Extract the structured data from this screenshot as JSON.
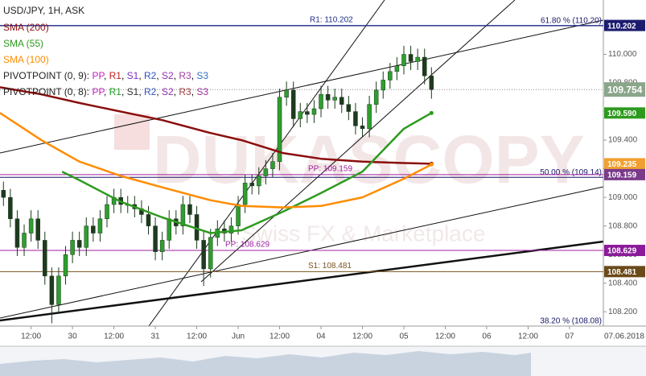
{
  "chart_data": {
    "type": "candlestick",
    "title": "USD/JPY, 1H, ASK",
    "xlim": [
      3,
      177.8
    ],
    "xticks": [
      {
        "value": 12,
        "label": "12:00"
      },
      {
        "value": 24,
        "label": "30"
      },
      {
        "value": 36,
        "label": "12:00"
      },
      {
        "value": 48,
        "label": "31"
      },
      {
        "value": 60,
        "label": "12:00"
      },
      {
        "value": 72,
        "label": "Jun"
      },
      {
        "value": 84,
        "label": "12:00"
      },
      {
        "value": 96,
        "label": "04"
      },
      {
        "value": 108,
        "label": "12:00"
      },
      {
        "value": 120,
        "label": "05"
      },
      {
        "value": 132,
        "label": "12:00"
      },
      {
        "value": 144,
        "label": "06"
      },
      {
        "value": 156,
        "label": "12:00"
      },
      {
        "value": 168,
        "label": "07"
      }
    ],
    "date_label": "07.06.2018",
    "ylim": [
      108.1,
      110.38
    ],
    "yticks": [
      {
        "value": 108.2,
        "label": "108.200"
      },
      {
        "value": 108.4,
        "label": "108.400"
      },
      {
        "value": 108.6,
        "label": "108.600"
      },
      {
        "value": 108.8,
        "label": "108.800"
      },
      {
        "value": 109.0,
        "label": "109.000"
      },
      {
        "value": 109.2,
        "label": "109.200"
      },
      {
        "value": 109.4,
        "label": "109.400"
      },
      {
        "value": 109.6,
        "label": "109.600"
      },
      {
        "value": 109.8,
        "label": "109.800"
      },
      {
        "value": 110.0,
        "label": "110.000"
      }
    ],
    "candles": {
      "up_color": "#2e9e2e",
      "down_color": "#1f3a1f",
      "x": [
        4,
        6,
        8,
        10,
        12,
        14,
        16,
        18,
        20,
        22,
        24,
        26,
        28,
        30,
        32,
        34,
        36,
        38,
        40,
        42,
        44,
        46,
        48,
        50,
        52,
        54,
        56,
        58,
        60,
        62,
        64,
        66,
        68,
        70,
        72,
        74,
        76,
        78,
        80,
        82,
        84,
        86,
        88,
        90,
        92,
        94,
        96,
        98,
        100,
        102,
        104,
        106,
        108,
        110,
        112,
        114,
        116,
        118,
        120,
        122,
        124,
        126,
        128
      ],
      "open": [
        109.05,
        109.0,
        108.85,
        108.65,
        108.75,
        108.85,
        108.7,
        108.45,
        108.25,
        108.45,
        108.6,
        108.7,
        108.65,
        108.8,
        108.75,
        108.85,
        108.95,
        109.0,
        108.95,
        108.95,
        108.92,
        108.88,
        108.8,
        108.62,
        108.7,
        108.85,
        108.8,
        108.95,
        108.88,
        108.7,
        108.5,
        108.72,
        108.78,
        108.75,
        108.8,
        108.95,
        109.1,
        109.08,
        109.15,
        109.2,
        109.25,
        109.7,
        109.75,
        109.55,
        109.6,
        109.58,
        109.62,
        109.72,
        109.68,
        109.7,
        109.65,
        109.6,
        109.5,
        109.48,
        109.65,
        109.75,
        109.82,
        109.88,
        109.92,
        110.0,
        109.95,
        109.98,
        109.85
      ],
      "high": [
        109.11,
        109.06,
        108.91,
        108.81,
        108.91,
        108.91,
        108.76,
        108.51,
        108.51,
        108.66,
        108.76,
        108.76,
        108.86,
        108.86,
        108.91,
        109.01,
        109.06,
        109.06,
        109.01,
        109.01,
        108.98,
        108.94,
        108.86,
        108.76,
        108.91,
        108.91,
        109.01,
        109.01,
        108.94,
        108.76,
        108.78,
        108.84,
        108.84,
        108.86,
        109.01,
        109.16,
        109.16,
        109.21,
        109.26,
        109.31,
        109.76,
        109.81,
        109.81,
        109.66,
        109.66,
        109.68,
        109.78,
        109.78,
        109.76,
        109.76,
        109.71,
        109.66,
        109.56,
        109.71,
        109.81,
        109.88,
        109.94,
        109.98,
        110.06,
        110.06,
        110.04,
        110.04,
        109.91
      ],
      "low": [
        108.94,
        108.79,
        108.59,
        108.59,
        108.69,
        108.64,
        108.39,
        108.12,
        108.19,
        108.39,
        108.54,
        108.59,
        108.59,
        108.69,
        108.69,
        108.79,
        108.89,
        108.89,
        108.89,
        108.86,
        108.82,
        108.74,
        108.56,
        108.56,
        108.64,
        108.74,
        108.74,
        108.82,
        108.64,
        108.38,
        108.44,
        108.66,
        108.69,
        108.69,
        108.74,
        108.89,
        109.02,
        109.02,
        109.09,
        109.14,
        109.19,
        109.64,
        109.49,
        109.49,
        109.52,
        109.52,
        109.56,
        109.62,
        109.62,
        109.59,
        109.54,
        109.44,
        109.42,
        109.42,
        109.59,
        109.69,
        109.76,
        109.82,
        109.86,
        109.89,
        109.89,
        109.79,
        109.69
      ],
      "close": [
        109.0,
        108.85,
        108.65,
        108.75,
        108.85,
        108.7,
        108.45,
        108.25,
        108.45,
        108.6,
        108.7,
        108.65,
        108.8,
        108.75,
        108.85,
        108.95,
        109.0,
        108.95,
        108.95,
        108.92,
        108.88,
        108.8,
        108.62,
        108.7,
        108.85,
        108.8,
        108.95,
        108.88,
        108.7,
        108.5,
        108.72,
        108.78,
        108.75,
        108.8,
        108.95,
        109.1,
        109.08,
        109.15,
        109.2,
        109.25,
        109.7,
        109.75,
        109.55,
        109.6,
        109.58,
        109.62,
        109.72,
        109.68,
        109.7,
        109.65,
        109.6,
        109.5,
        109.48,
        109.65,
        109.75,
        109.82,
        109.88,
        109.92,
        110.0,
        109.95,
        109.98,
        109.85,
        109.754
      ]
    },
    "series": [
      {
        "name": "SMA (200)",
        "color": "#8b0d0d",
        "x": [
          3,
          15,
          26,
          38,
          50,
          64,
          73,
          85,
          96,
          108,
          120,
          128
        ],
        "values": [
          109.77,
          109.72,
          109.66,
          109.6,
          109.54,
          109.45,
          109.4,
          109.31,
          109.27,
          109.25,
          109.24,
          109.235
        ]
      },
      {
        "name": "SMA (55)",
        "color": "#2d9a1e",
        "x": [
          21,
          26,
          38,
          50,
          64,
          73,
          85,
          96,
          108,
          120,
          128
        ],
        "values": [
          109.18,
          109.12,
          108.97,
          108.86,
          108.75,
          108.77,
          108.9,
          109.03,
          109.18,
          109.48,
          109.59
        ]
      },
      {
        "name": "SMA (100)",
        "color": "#ff8c00",
        "x": [
          3,
          15,
          26,
          38,
          50,
          64,
          73,
          85,
          96,
          108,
          120,
          128
        ],
        "values": [
          109.59,
          109.4,
          109.25,
          109.15,
          109.07,
          108.98,
          108.94,
          108.93,
          108.94,
          109.0,
          109.13,
          109.23
        ]
      }
    ],
    "current": {
      "value": 109.754,
      "label": "109.754"
    },
    "levels": [
      {
        "label": "R1: 110.202",
        "value": 110.202,
        "color": "#1d2a8f"
      },
      {
        "label": "PP: 109.159",
        "value": 109.159,
        "color": "#a020a0"
      },
      {
        "label": "PP: 108.629",
        "value": 108.629,
        "color": "#a020a0"
      },
      {
        "label": "S1: 108.481",
        "value": 108.481,
        "color": "#7a5020"
      }
    ],
    "fibs": [
      {
        "label": "61.80 % (110.20)",
        "value": 110.2
      },
      {
        "label": "50.00 % (109.14)",
        "value": 109.14
      },
      {
        "label": "38.20 % (108.08)",
        "value": 108.08
      }
    ],
    "fib_color": "#16166b",
    "price_tags": [
      {
        "value": 110.202,
        "label": "110.202",
        "bg": "#1c1c6e"
      },
      {
        "value": 109.754,
        "label": "109.754",
        "bg": "#8aa68a"
      },
      {
        "value": 109.59,
        "label": "109.590",
        "bg": "#2d9a1e"
      },
      {
        "value": 109.235,
        "label": "109.235",
        "bg": "#f0a030"
      },
      {
        "value": 109.159,
        "label": "109.159",
        "bg": "#7a3a8a"
      },
      {
        "value": 108.629,
        "label": "108.629",
        "bg": "#8a1a9a"
      },
      {
        "value": 108.481,
        "label": "108.481",
        "bg": "#6b4a1a"
      }
    ],
    "pivot_legends": [
      {
        "prefix": "PIVOTPOINT (0, 9): ",
        "items": [
          {
            "text": "PP",
            "color": "#c020c0"
          },
          {
            "text": ", ",
            "color": "#000000"
          },
          {
            "text": "R1",
            "color": "#c02020"
          },
          {
            "text": ", ",
            "color": "#000000"
          },
          {
            "text": "S1",
            "color": "#8030c0"
          },
          {
            "text": ", ",
            "color": "#000000"
          },
          {
            "text": "R2",
            "color": "#3050c0"
          },
          {
            "text": ", ",
            "color": "#000000"
          },
          {
            "text": "S2",
            "color": "#9030b0"
          },
          {
            "text": ", ",
            "color": "#000000"
          },
          {
            "text": "R3",
            "color": "#a040a0"
          },
          {
            "text": ", ",
            "color": "#000000"
          },
          {
            "text": "S3",
            "color": "#3070c0"
          }
        ]
      },
      {
        "prefix": "PIVOTPOINT (0, 8): ",
        "items": [
          {
            "text": "PP",
            "color": "#c020c0"
          },
          {
            "text": ", ",
            "color": "#000000"
          },
          {
            "text": "R1",
            "color": "#20a020"
          },
          {
            "text": ", ",
            "color": "#000000"
          },
          {
            "text": "S1",
            "color": "#303030"
          },
          {
            "text": ", ",
            "color": "#000000"
          },
          {
            "text": "R2",
            "color": "#3050c0"
          },
          {
            "text": ", ",
            "color": "#000000"
          },
          {
            "text": "S2",
            "color": "#9030b0"
          },
          {
            "text": ", ",
            "color": "#000000"
          },
          {
            "text": "R3",
            "color": "#a04040"
          },
          {
            "text": ", ",
            "color": "#000000"
          },
          {
            "text": "S3",
            "color": "#a030a0"
          }
        ]
      }
    ],
    "watermark": "DUKASCOPY",
    "watermark_sub": "Swiss FX & Marketplace"
  }
}
